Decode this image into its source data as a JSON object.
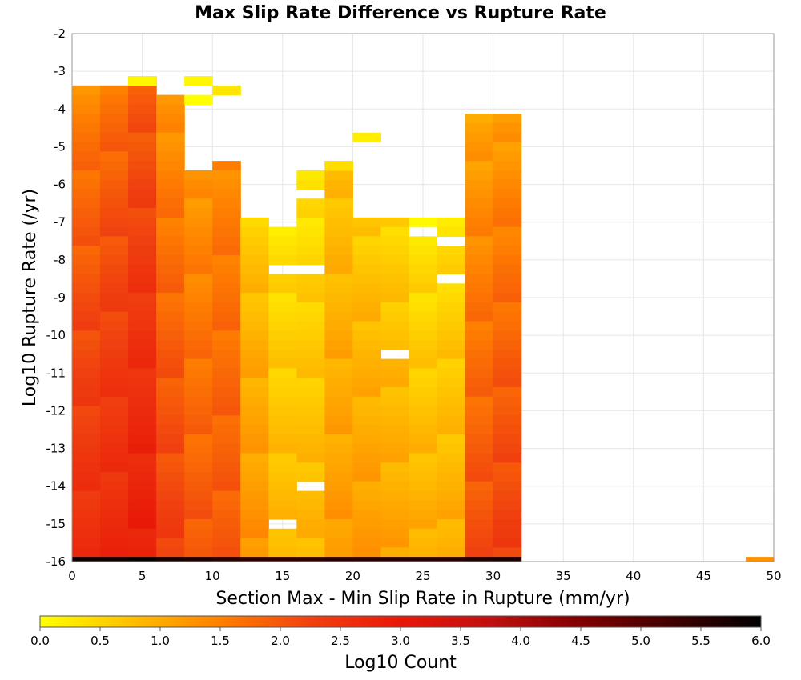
{
  "chart_data": {
    "type": "heatmap",
    "title": "Max Slip Rate Difference vs Rupture Rate",
    "xlabel": "Section Max - Min Slip Rate in Rupture (mm/yr)",
    "ylabel": "Log10 Rupture Rate (/yr)",
    "xlim": [
      0,
      50
    ],
    "ylim": [
      -16,
      -2
    ],
    "x_ticks": [
      0,
      5,
      10,
      15,
      20,
      25,
      30,
      35,
      40,
      45,
      50
    ],
    "y_ticks": [
      -2,
      -3,
      -4,
      -5,
      -6,
      -7,
      -8,
      -9,
      -10,
      -11,
      -12,
      -13,
      -14,
      -15,
      -16
    ],
    "x_bin_width": 2,
    "y_bin_width": 0.25,
    "grid": true,
    "colorbar": {
      "label": "Log10 Count",
      "range": [
        0,
        6
      ],
      "ticks": [
        "0.0",
        "0.5",
        "1.0",
        "1.5",
        "2.0",
        "2.5",
        "3.0",
        "3.5",
        "4.0",
        "4.5",
        "5.0",
        "5.5",
        "6.0"
      ],
      "colors": [
        "#ffff00",
        "#ffc000",
        "#ff8000",
        "#f04010",
        "#e81808",
        "#c01010",
        "#800000",
        "#400000",
        "#000000"
      ]
    },
    "x_bins": [
      1,
      3,
      5,
      7,
      9,
      11,
      13,
      15,
      17,
      19,
      21,
      23,
      25,
      27,
      29,
      31
    ],
    "columns": [
      {
        "x": 1,
        "top": -3.5,
        "low": 1.4,
        "high": 2.6,
        "bottom_value": 5.8
      },
      {
        "x": 3,
        "top": -3.5,
        "low": 1.6,
        "high": 2.7,
        "bottom_value": 5.8
      },
      {
        "x": 5,
        "top": -3.25,
        "low": 1.8,
        "high": 2.9,
        "bottom_value": 5.9
      },
      {
        "x": 7,
        "top": -3.75,
        "low": 1.2,
        "high": 2.3,
        "bottom_value": 5.7
      },
      {
        "x": 9,
        "top": -5.75,
        "low": 1.2,
        "high": 2.0,
        "bottom_value": 5.6
      },
      {
        "x": 11,
        "top": -5.5,
        "low": 1.4,
        "high": 2.0,
        "bottom_value": 5.5
      },
      {
        "x": 13,
        "top": -7.0,
        "low": 0.6,
        "high": 1.3,
        "bottom_value": 5.4
      },
      {
        "x": 15,
        "top": -7.25,
        "low": 0.3,
        "high": 0.9,
        "bottom_value": 5.4
      },
      {
        "x": 17,
        "top": -5.75,
        "low": 0.3,
        "high": 0.9,
        "bottom_value": 5.4
      },
      {
        "x": 19,
        "top": -5.5,
        "low": 0.7,
        "high": 1.2,
        "bottom_value": 5.5
      },
      {
        "x": 21,
        "top": -7.0,
        "low": 0.6,
        "high": 1.2,
        "bottom_value": 5.5
      },
      {
        "x": 23,
        "top": -7.0,
        "low": 0.5,
        "high": 1.1,
        "bottom_value": 5.5
      },
      {
        "x": 25,
        "top": -7.0,
        "low": 0.2,
        "high": 1.0,
        "bottom_value": 5.5
      },
      {
        "x": 27,
        "top": -7.0,
        "low": 0.3,
        "high": 1.0,
        "bottom_value": 5.5
      },
      {
        "x": 29,
        "top": -4.25,
        "low": 1.0,
        "high": 2.1,
        "bottom_value": 5.6
      },
      {
        "x": 31,
        "top": -4.25,
        "low": 1.1,
        "high": 2.3,
        "bottom_value": 5.7
      }
    ],
    "isolated_cells": [
      {
        "x": 5,
        "y": -3.25,
        "value": 0.1
      },
      {
        "x": 9,
        "y": -3.25,
        "value": 0.1
      },
      {
        "x": 9,
        "y": -3.75,
        "value": 0.0
      },
      {
        "x": 11,
        "y": -3.5,
        "value": 0.3
      },
      {
        "x": 21,
        "y": -4.75,
        "value": 0.2
      },
      {
        "x": 19,
        "y": -5.5,
        "value": 0.4
      },
      {
        "x": 49,
        "y": -16.0,
        "value": 1.3
      }
    ],
    "empty_cells": [
      {
        "x": 15,
        "y": -8.25
      },
      {
        "x": 17,
        "y": -8.25
      },
      {
        "x": 27,
        "y": -7.5
      },
      {
        "x": 27,
        "y": -8.5
      },
      {
        "x": 23,
        "y": -10.5
      },
      {
        "x": 17,
        "y": -14.0
      },
      {
        "x": 15,
        "y": -15.0
      },
      {
        "x": 17,
        "y": -6.25
      },
      {
        "x": 25,
        "y": -7.25
      }
    ]
  }
}
